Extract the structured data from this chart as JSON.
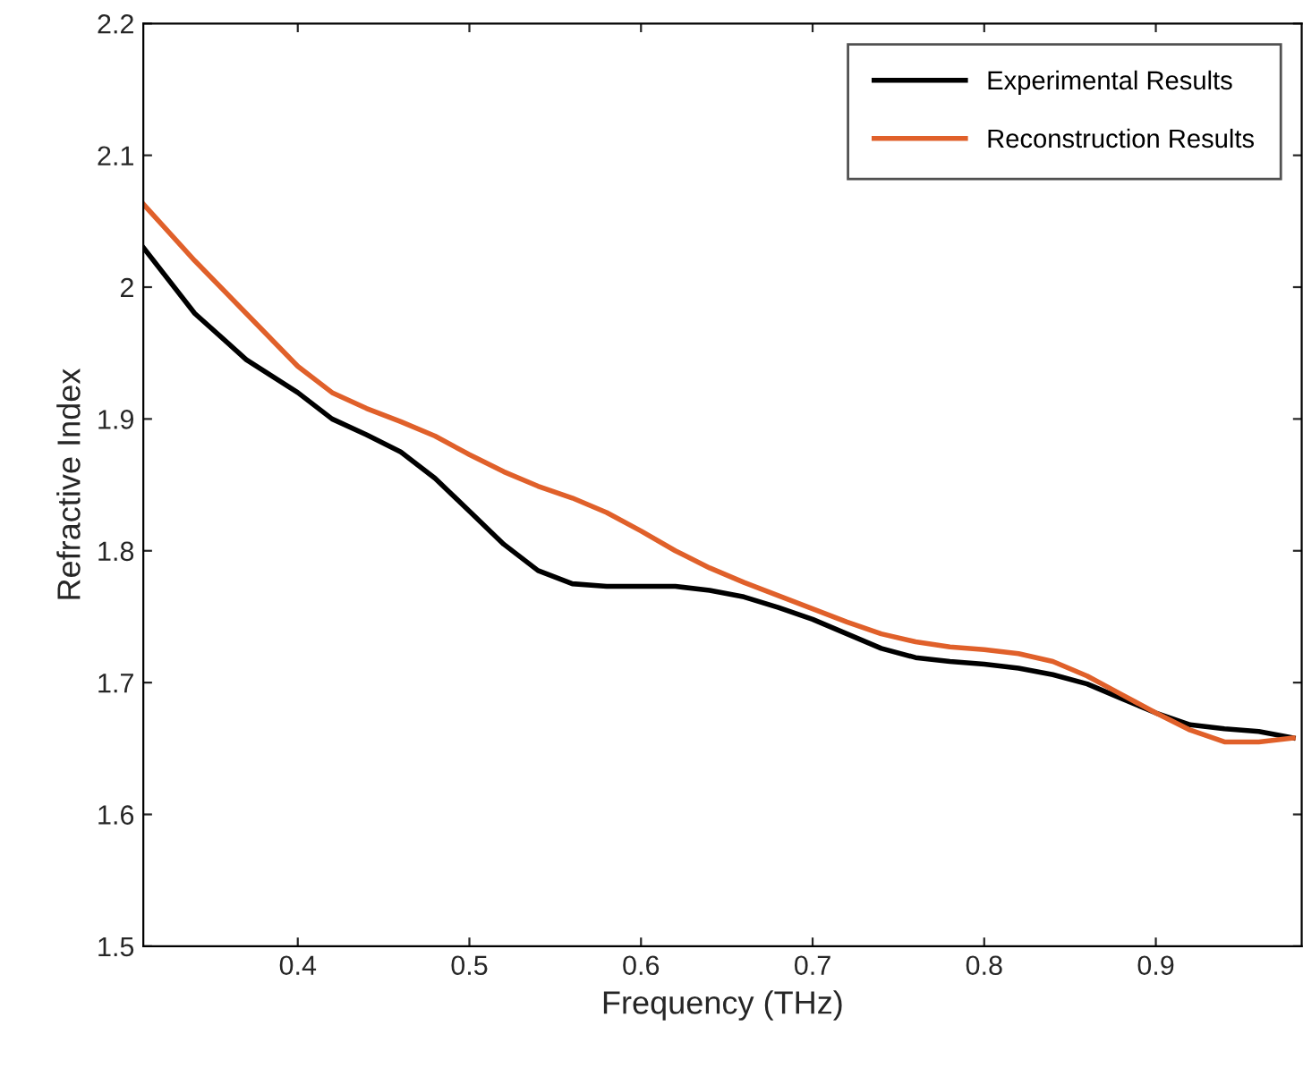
{
  "chart_data": {
    "type": "line",
    "xlabel": "Frequency (THz)",
    "ylabel": "Refractive Index",
    "x": [
      0.31,
      0.34,
      0.37,
      0.4,
      0.42,
      0.44,
      0.46,
      0.48,
      0.5,
      0.52,
      0.54,
      0.56,
      0.58,
      0.6,
      0.62,
      0.64,
      0.66,
      0.68,
      0.7,
      0.72,
      0.74,
      0.76,
      0.78,
      0.8,
      0.82,
      0.84,
      0.86,
      0.88,
      0.9,
      0.92,
      0.94,
      0.96,
      0.98
    ],
    "series": [
      {
        "name": "Experimental Results",
        "color": "#000000",
        "values": [
          2.03,
          1.98,
          1.945,
          1.92,
          1.9,
          1.888,
          1.875,
          1.855,
          1.83,
          1.805,
          1.785,
          1.775,
          1.773,
          1.773,
          1.773,
          1.77,
          1.765,
          1.757,
          1.748,
          1.737,
          1.726,
          1.719,
          1.716,
          1.714,
          1.711,
          1.706,
          1.699,
          1.688,
          1.677,
          1.668,
          1.665,
          1.663,
          1.658
        ]
      },
      {
        "name": "Reconstruction Results",
        "color": "#e0602a",
        "values": [
          2.063,
          2.02,
          1.98,
          1.94,
          1.92,
          1.908,
          1.898,
          1.887,
          1.873,
          1.86,
          1.849,
          1.84,
          1.829,
          1.815,
          1.8,
          1.787,
          1.776,
          1.766,
          1.756,
          1.746,
          1.737,
          1.731,
          1.727,
          1.725,
          1.722,
          1.716,
          1.705,
          1.691,
          1.677,
          1.664,
          1.655,
          1.655,
          1.658
        ]
      }
    ],
    "xlim": [
      0.31,
      0.985
    ],
    "xticks": [
      0.4,
      0.5,
      0.6,
      0.7,
      0.8,
      0.9
    ],
    "ylim": [
      1.5,
      2.2
    ],
    "yticks": [
      1.5,
      1.6,
      1.7,
      1.8,
      1.9,
      2,
      2.1,
      2.2
    ],
    "grid": false,
    "legend": "top right",
    "marker": "none",
    "line_style": "solid"
  }
}
